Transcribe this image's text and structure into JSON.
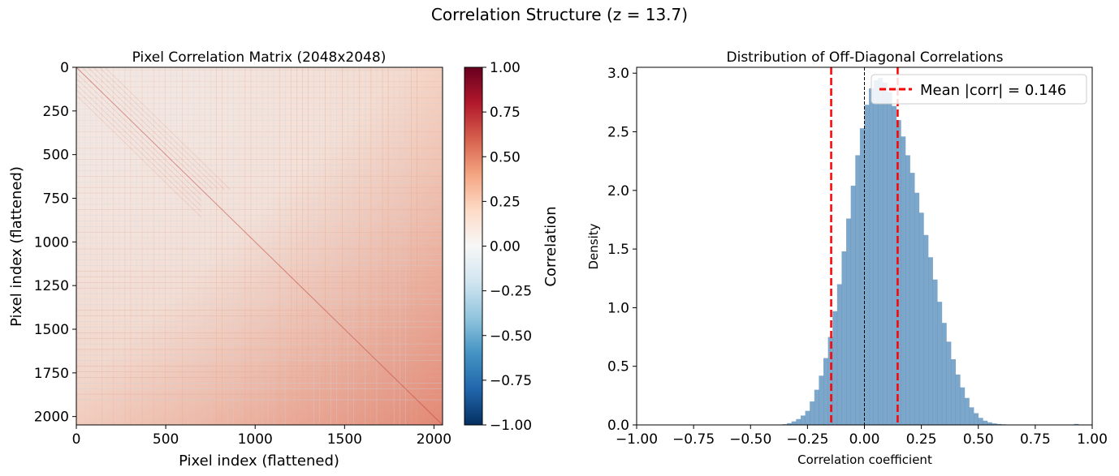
{
  "figure": {
    "suptitle": "Correlation Structure (z = 13.7)"
  },
  "chart_data": [
    {
      "type": "heatmap",
      "title": "Pixel Correlation Matrix (2048x2048)",
      "xlabel": "Pixel index (flattened)",
      "ylabel": "Pixel index (flattened)",
      "xlim": [
        0,
        2048
      ],
      "ylim": [
        2048,
        0
      ],
      "xticks": [
        0,
        500,
        1000,
        1500,
        2000
      ],
      "xtick_labels": [
        "0",
        "500",
        "1000",
        "1500",
        "2000"
      ],
      "yticks": [
        0,
        250,
        500,
        750,
        1000,
        1250,
        1500,
        1750,
        2000
      ],
      "ytick_labels": [
        "0",
        "250",
        "500",
        "750",
        "1000",
        "1250",
        "1500",
        "1750",
        "2000"
      ],
      "colormap": "RdBu_r",
      "colorbar": {
        "label": "Correlation",
        "vmin": -1.0,
        "vmax": 1.0,
        "ticks": [
          1.0,
          0.75,
          0.5,
          0.25,
          0.0,
          -0.25,
          -0.5,
          -0.75,
          -1.0
        ],
        "tick_labels": [
          "1.00",
          "0.75",
          "0.50",
          "0.25",
          "0.00",
          "−0.25",
          "−0.50",
          "−0.75",
          "−1.00"
        ],
        "colors": [
          "#053061",
          "#2166ac",
          "#4393c3",
          "#92c5de",
          "#d1e5f0",
          "#f7f7f7",
          "#fddbc7",
          "#f4a582",
          "#d6604d",
          "#b2182b",
          "#67001f"
        ]
      },
      "matrix_summary": {
        "diagonal_value": 1.0,
        "typical_corr_top_left": 0.05,
        "typical_corr_bottom_right": 0.5
      }
    },
    {
      "type": "histogram",
      "title": "Distribution of Off-Diagonal Correlations",
      "xlabel": "Correlation coefficient",
      "ylabel": "Density",
      "xlim": [
        -1.0,
        1.0
      ],
      "ylim": [
        0,
        3.05
      ],
      "xticks": [
        -1.0,
        -0.75,
        -0.5,
        -0.25,
        0.0,
        0.25,
        0.5,
        0.75,
        1.0
      ],
      "xtick_labels": [
        "−1.00",
        "−0.75",
        "−0.50",
        "−0.25",
        "0.00",
        "0.25",
        "0.50",
        "0.75",
        "1.00"
      ],
      "yticks": [
        0.0,
        0.5,
        1.0,
        1.5,
        2.0,
        2.5,
        3.0
      ],
      "ytick_labels": [
        "0.0",
        "0.5",
        "1.0",
        "1.5",
        "2.0",
        "2.5",
        "3.0"
      ],
      "bar_color": "#4682b4",
      "bin_width": 0.02,
      "bin_centers": [
        -0.37,
        -0.35,
        -0.33,
        -0.31,
        -0.29,
        -0.27,
        -0.25,
        -0.23,
        -0.21,
        -0.19,
        -0.17,
        -0.15,
        -0.13,
        -0.11,
        -0.09,
        -0.07,
        -0.05,
        -0.03,
        -0.01,
        0.01,
        0.03,
        0.05,
        0.07,
        0.09,
        0.11,
        0.13,
        0.15,
        0.17,
        0.19,
        0.21,
        0.23,
        0.25,
        0.27,
        0.29,
        0.31,
        0.33,
        0.35,
        0.37,
        0.39,
        0.41,
        0.43,
        0.45,
        0.47,
        0.49,
        0.51,
        0.53,
        0.55,
        0.57,
        0.59,
        0.61,
        0.63,
        0.65,
        0.67,
        0.93
      ],
      "density": [
        0.003,
        0.006,
        0.015,
        0.03,
        0.05,
        0.08,
        0.12,
        0.2,
        0.3,
        0.42,
        0.57,
        0.75,
        0.97,
        1.2,
        1.48,
        1.76,
        2.04,
        2.3,
        2.53,
        2.73,
        2.87,
        2.94,
        2.96,
        2.92,
        2.84,
        2.72,
        2.6,
        2.46,
        2.3,
        2.15,
        1.98,
        1.81,
        1.62,
        1.43,
        1.24,
        1.05,
        0.87,
        0.71,
        0.56,
        0.43,
        0.32,
        0.23,
        0.15,
        0.1,
        0.06,
        0.036,
        0.022,
        0.013,
        0.008,
        0.005,
        0.003,
        0.002,
        0.001,
        0.008
      ],
      "vertical_lines": [
        {
          "x": -0.146,
          "color": "#ff0000",
          "style": "dashed"
        },
        {
          "x": 0.146,
          "color": "#ff0000",
          "style": "dashed"
        },
        {
          "x": 0.0,
          "color": "#000000",
          "style": "dashed"
        }
      ],
      "legend": {
        "location": "upper right",
        "entries": [
          {
            "label": "Mean |corr| = 0.146",
            "color": "#ff0000",
            "style": "dashed"
          }
        ]
      }
    }
  ]
}
